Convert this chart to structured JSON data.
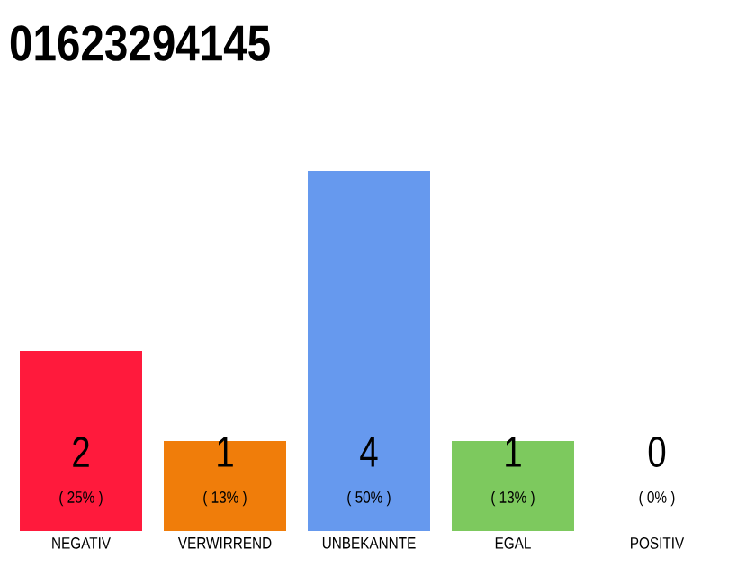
{
  "chart_data": {
    "type": "bar",
    "title": "01623294145",
    "categories": [
      "NEGATIV",
      "VERWIRREND",
      "UNBEKANNTE",
      "EGAL",
      "POSITIV"
    ],
    "values": [
      2,
      1,
      4,
      1,
      0
    ],
    "colors": [
      "#ff1a3c",
      "#f07d0a",
      "#6699ee",
      "#7dc95e",
      "#bbbbbb"
    ],
    "value_labels": [
      "2",
      "1",
      "4",
      "1",
      "0"
    ],
    "annotations": [
      "( 25% )",
      "( 13% )",
      "( 50% )",
      "( 13% )",
      "( 0% )"
    ]
  }
}
